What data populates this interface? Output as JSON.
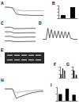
{
  "chart_data": [
    {
      "type": "line",
      "title": "A",
      "xlim": [
        0,
        10
      ],
      "ylim": [
        -3,
        0.5
      ],
      "tick_labels": false,
      "series": [
        {
          "color": "#000000",
          "x": [
            0,
            1,
            2,
            3,
            4,
            5,
            6,
            7,
            8,
            9,
            10
          ],
          "values": [
            0,
            0,
            -0.2,
            -2,
            -2.2,
            -2.3,
            -2.3,
            -2.4,
            -2.4,
            -2.4,
            -2.4
          ]
        },
        {
          "color": "#888888",
          "x": [
            0,
            1,
            2,
            3,
            4,
            5,
            6,
            7,
            8,
            9,
            10
          ],
          "values": [
            0,
            0,
            -0.1,
            -0.8,
            -0.9,
            -1,
            -1,
            -1,
            -1,
            -1,
            -1
          ]
        }
      ]
    },
    {
      "type": "bar",
      "title": "B",
      "categories": [
        null,
        null
      ],
      "values": [
        1.0,
        3.5
      ],
      "color": "#000000",
      "ylim": [
        0,
        4
      ],
      "yticks": [
        0,
        1,
        2,
        3,
        4
      ],
      "tick_labels": false
    },
    {
      "type": "line",
      "title": "C",
      "xlim": [
        0,
        10
      ],
      "ylim": [
        0,
        8
      ],
      "tick_labels": false,
      "series": [
        {
          "color": "#000000",
          "x": [
            0,
            2,
            3,
            5,
            8,
            10
          ],
          "values": [
            7.2,
            7.2,
            6.6,
            6.6,
            6.7,
            6.7
          ]
        },
        {
          "color": "#000000",
          "x": [
            0,
            2,
            3,
            5,
            8,
            10
          ],
          "values": [
            5.2,
            5.2,
            4.7,
            4.7,
            4.8,
            4.8
          ]
        },
        {
          "color": "#000000",
          "x": [
            0,
            2,
            3,
            5,
            8,
            10
          ],
          "values": [
            3.2,
            3.2,
            2.8,
            2.8,
            2.9,
            2.9
          ]
        },
        {
          "color": "#000000",
          "x": [
            0,
            2,
            3,
            5,
            8,
            10
          ],
          "values": [
            1.2,
            1.2,
            0.9,
            0.9,
            1.0,
            1.0
          ]
        }
      ]
    },
    {
      "type": "line",
      "title": "D",
      "xlim": [
        0,
        20
      ],
      "ylim": [
        -1,
        5
      ],
      "tick_labels": false,
      "series": [
        {
          "color": "#000000",
          "x": [
            0,
            2,
            3,
            4,
            5,
            6,
            7,
            8,
            9,
            10,
            11,
            12,
            13,
            14,
            15,
            16,
            18,
            20
          ],
          "values": [
            0,
            0,
            4,
            0.5,
            3.5,
            0.5,
            3,
            0.5,
            3,
            0.5,
            2.8,
            0.5,
            2.8,
            0.5,
            2.6,
            0.4,
            0,
            0
          ]
        }
      ]
    },
    {
      "type": "bar",
      "title": "F",
      "categories": [
        null,
        null,
        null
      ],
      "values": [
        1,
        2.5,
        2
      ],
      "color": "#000000",
      "ylim": [
        0,
        3
      ],
      "yticks": [
        0,
        1,
        2,
        3
      ],
      "tick_labels": false
    },
    {
      "type": "bar",
      "title": "G",
      "categories": [
        null,
        null
      ],
      "values": [
        1,
        0.4
      ],
      "color": "#000000",
      "ylim": [
        0,
        1.5
      ],
      "yticks": [
        0,
        0.5,
        1,
        1.5
      ],
      "tick_labels": false
    },
    {
      "type": "line",
      "title": "H",
      "xlim": [
        0,
        10
      ],
      "ylim": [
        -2,
        1
      ],
      "tick_labels": false,
      "series": [
        {
          "color": "#000000",
          "x": [
            0,
            1,
            2,
            3,
            4,
            5,
            6,
            7,
            8,
            9,
            10
          ],
          "values": [
            0,
            0,
            0,
            -1.5,
            -1.2,
            -1,
            -0.8,
            -0.6,
            -0.5,
            -0.4,
            -0.4
          ]
        },
        {
          "color": "#888888",
          "x": [
            0,
            1,
            2,
            3,
            4,
            5,
            6,
            7,
            8,
            9,
            10
          ],
          "values": [
            0,
            0,
            0,
            -0.6,
            -0.5,
            -0.4,
            -0.3,
            -0.3,
            -0.2,
            -0.2,
            -0.2
          ]
        }
      ]
    },
    {
      "type": "bar",
      "title": "I",
      "categories": [
        null,
        null,
        null
      ],
      "values": [
        1,
        1.8,
        0.9
      ],
      "color": "#000000",
      "ylim": [
        0,
        2
      ],
      "yticks": [
        0,
        1,
        2
      ],
      "tick_labels": false
    }
  ],
  "gel": {
    "title": "E"
  }
}
